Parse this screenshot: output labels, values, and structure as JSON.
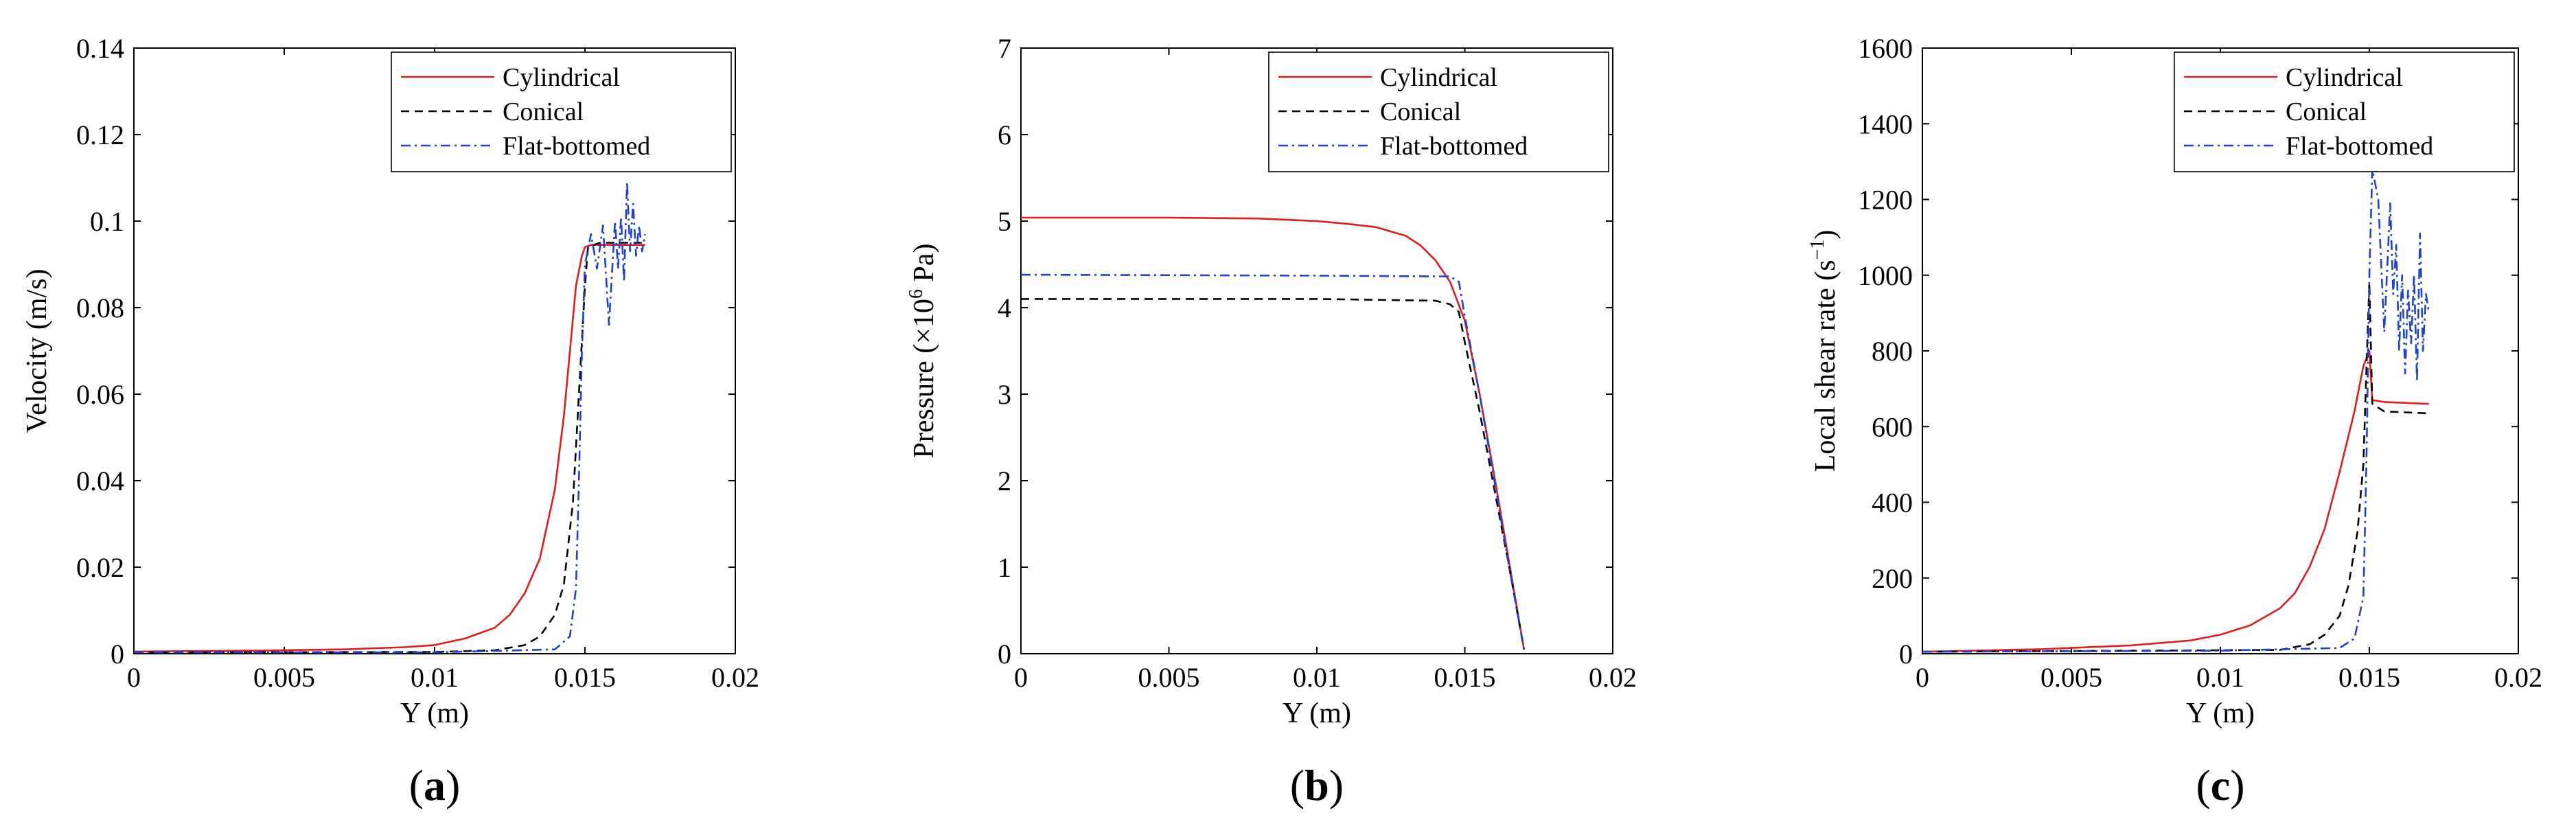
{
  "chart_data": [
    {
      "type": "line",
      "panel_label": "a",
      "xlabel": "Y (m)",
      "ylabel": "Velocity (m/s)",
      "xlim": [
        0,
        0.02
      ],
      "ylim": [
        0,
        0.14
      ],
      "xticks": [
        "0",
        "0.005",
        "0.01",
        "0.015",
        "0.02"
      ],
      "xtick_values": [
        0,
        0.005,
        0.01,
        0.015,
        0.02
      ],
      "yticks": [
        "0",
        "0.02",
        "0.04",
        "0.06",
        "0.08",
        "0.1",
        "0.12",
        "0.14"
      ],
      "ytick_values": [
        0,
        0.02,
        0.04,
        0.06,
        0.08,
        0.1,
        0.12,
        0.14
      ],
      "legend_position": "top-right",
      "series": [
        {
          "name": "Cylindrical",
          "color": "#e41a1c",
          "dash": "solid",
          "x": [
            0,
            0.004,
            0.007,
            0.009,
            0.01,
            0.011,
            0.012,
            0.0125,
            0.013,
            0.0135,
            0.014,
            0.0143,
            0.0145,
            0.0147,
            0.0149,
            0.015,
            0.0152,
            0.017
          ],
          "y": [
            0.0005,
            0.0007,
            0.001,
            0.0015,
            0.002,
            0.0035,
            0.006,
            0.009,
            0.014,
            0.022,
            0.038,
            0.055,
            0.07,
            0.085,
            0.092,
            0.094,
            0.0945,
            0.0945
          ]
        },
        {
          "name": "Conical",
          "color": "#000000",
          "dash": "dashed",
          "x": [
            0,
            0.01,
            0.012,
            0.013,
            0.0135,
            0.014,
            0.0143,
            0.0146,
            0.0148,
            0.015,
            0.0151,
            0.0155,
            0.017
          ],
          "y": [
            0.0003,
            0.0004,
            0.0008,
            0.002,
            0.004,
            0.009,
            0.016,
            0.035,
            0.06,
            0.085,
            0.094,
            0.095,
            0.095
          ]
        },
        {
          "name": "Flat-bottomed",
          "color": "#1f3fd6",
          "dash": "dashdot",
          "x": [
            0,
            0.01,
            0.014,
            0.0145,
            0.0147,
            0.0148,
            0.0149,
            0.015,
            0.0152,
            0.0154,
            0.0156,
            0.0158,
            0.016,
            0.0161,
            0.0162,
            0.0163,
            0.0164,
            0.0165,
            0.0166,
            0.0167,
            0.0168,
            0.0169,
            0.017
          ],
          "y": [
            0.0003,
            0.0003,
            0.001,
            0.004,
            0.015,
            0.04,
            0.07,
            0.09,
            0.097,
            0.089,
            0.099,
            0.076,
            0.1,
            0.089,
            0.101,
            0.086,
            0.109,
            0.093,
            0.104,
            0.092,
            0.099,
            0.093,
            0.097
          ]
        }
      ]
    },
    {
      "type": "line",
      "panel_label": "b",
      "xlabel": "Y (m)",
      "ylabel_pre": "Pressure (×10",
      "ylabel_sup": "6",
      "ylabel_post": " Pa)",
      "xlim": [
        0,
        0.02
      ],
      "ylim": [
        0,
        7
      ],
      "xticks": [
        "0",
        "0.005",
        "0.01",
        "0.015",
        "0.02"
      ],
      "xtick_values": [
        0,
        0.005,
        0.01,
        0.015,
        0.02
      ],
      "yticks": [
        "0",
        "1",
        "2",
        "3",
        "4",
        "5",
        "6",
        "7"
      ],
      "ytick_values": [
        0,
        1,
        2,
        3,
        4,
        5,
        6,
        7
      ],
      "legend_position": "top-right",
      "series": [
        {
          "name": "Cylindrical",
          "color": "#e41a1c",
          "dash": "solid",
          "x": [
            0,
            0.005,
            0.008,
            0.01,
            0.011,
            0.012,
            0.013,
            0.0135,
            0.014,
            0.0145,
            0.015,
            0.0155,
            0.016,
            0.0165,
            0.017
          ],
          "y": [
            5.04,
            5.04,
            5.03,
            5.0,
            4.97,
            4.93,
            4.83,
            4.72,
            4.55,
            4.3,
            3.85,
            3.0,
            2.05,
            1.05,
            0.05
          ]
        },
        {
          "name": "Conical",
          "color": "#000000",
          "dash": "dashed",
          "x": [
            0,
            0.01,
            0.014,
            0.0145,
            0.0148,
            0.015,
            0.0155,
            0.016,
            0.0165,
            0.017
          ],
          "y": [
            4.1,
            4.1,
            4.08,
            4.04,
            3.95,
            3.6,
            2.8,
            1.9,
            1.0,
            0.05
          ]
        },
        {
          "name": "Flat-bottomed",
          "color": "#1f3fd6",
          "dash": "dashdot",
          "x": [
            0,
            0.01,
            0.0145,
            0.0148,
            0.015,
            0.0155,
            0.016,
            0.0165,
            0.017
          ],
          "y": [
            4.38,
            4.37,
            4.36,
            4.3,
            3.9,
            3.0,
            2.0,
            1.0,
            0.05
          ]
        }
      ]
    },
    {
      "type": "line",
      "panel_label": "c",
      "xlabel": "Y (m)",
      "ylabel_pre": "Local shear rate (s",
      "ylabel_sup": "−1",
      "ylabel_post": ")",
      "xlim": [
        0,
        0.02
      ],
      "ylim": [
        0,
        1600
      ],
      "xticks": [
        "0",
        "0.005",
        "0.01",
        "0.015",
        "0.02"
      ],
      "xtick_values": [
        0,
        0.005,
        0.01,
        0.015,
        0.02
      ],
      "yticks": [
        "0",
        "200",
        "400",
        "600",
        "800",
        "1000",
        "1200",
        "1400",
        "1600"
      ],
      "ytick_values": [
        0,
        200,
        400,
        600,
        800,
        1000,
        1200,
        1400,
        1600
      ],
      "legend_position": "top-right",
      "series": [
        {
          "name": "Cylindrical",
          "color": "#e41a1c",
          "dash": "solid",
          "x": [
            0,
            0.004,
            0.007,
            0.009,
            0.01,
            0.011,
            0.012,
            0.0125,
            0.013,
            0.0135,
            0.014,
            0.0145,
            0.0148,
            0.015,
            0.0151,
            0.0155,
            0.017
          ],
          "y": [
            5,
            12,
            22,
            35,
            50,
            75,
            120,
            160,
            230,
            330,
            480,
            640,
            760,
            800,
            670,
            665,
            660
          ]
        },
        {
          "name": "Conical",
          "color": "#000000",
          "dash": "dashed",
          "x": [
            0,
            0.012,
            0.013,
            0.0135,
            0.014,
            0.0143,
            0.0146,
            0.0148,
            0.0149,
            0.015,
            0.0151,
            0.0155,
            0.017
          ],
          "y": [
            5,
            10,
            25,
            50,
            100,
            180,
            320,
            500,
            750,
            980,
            660,
            640,
            635
          ]
        },
        {
          "name": "Flat-bottomed",
          "color": "#1f3fd6",
          "dash": "dashdot",
          "x": [
            0,
            0.01,
            0.014,
            0.0145,
            0.0148,
            0.0149,
            0.015,
            0.0151,
            0.0153,
            0.0155,
            0.0157,
            0.0158,
            0.0159,
            0.016,
            0.0161,
            0.0162,
            0.0163,
            0.0164,
            0.0165,
            0.0166,
            0.0167,
            0.0168,
            0.0169,
            0.017
          ],
          "y": [
            5,
            8,
            15,
            40,
            150,
            500,
            1000,
            1280,
            1200,
            850,
            1190,
            950,
            1080,
            800,
            1000,
            740,
            960,
            820,
            1000,
            720,
            1110,
            800,
            950,
            900
          ]
        }
      ]
    }
  ]
}
